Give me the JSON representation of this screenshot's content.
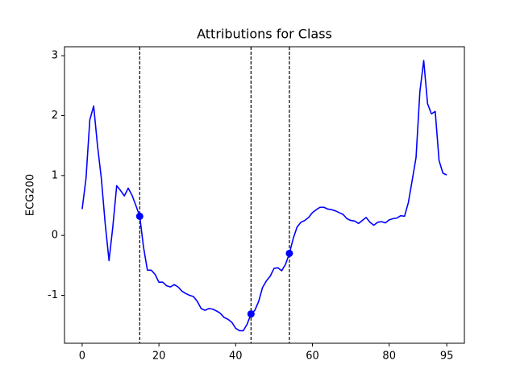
{
  "chart_data": {
    "type": "line",
    "title": "Attributions for Class",
    "y_label": "ECG200",
    "x": [
      0,
      1,
      2,
      3,
      4,
      5,
      6,
      7,
      8,
      9,
      10,
      11,
      12,
      13,
      14,
      15,
      16,
      17,
      18,
      19,
      20,
      21,
      22,
      23,
      24,
      25,
      26,
      27,
      28,
      29,
      30,
      31,
      32,
      33,
      34,
      35,
      36,
      37,
      38,
      39,
      40,
      41,
      42,
      43,
      44,
      45,
      46,
      47,
      48,
      49,
      50,
      51,
      52,
      53,
      54,
      55,
      56,
      57,
      58,
      59,
      60,
      61,
      62,
      63,
      64,
      65,
      66,
      67,
      68,
      69,
      70,
      71,
      72,
      73,
      74,
      75,
      76,
      77,
      78,
      79,
      80,
      81,
      82,
      83,
      84,
      85,
      86,
      87,
      88,
      89,
      90,
      91,
      92,
      93,
      94,
      95
    ],
    "series": [
      {
        "color": "#0000ff",
        "values": [
          0.44,
          0.95,
          1.93,
          2.16,
          1.5,
          0.95,
          0.2,
          -0.42,
          0.15,
          0.83,
          0.75,
          0.66,
          0.79,
          0.67,
          0.5,
          0.32,
          -0.2,
          -0.58,
          -0.58,
          -0.65,
          -0.78,
          -0.78,
          -0.84,
          -0.86,
          -0.82,
          -0.86,
          -0.93,
          -0.97,
          -1.0,
          -1.02,
          -1.1,
          -1.22,
          -1.25,
          -1.22,
          -1.23,
          -1.26,
          -1.3,
          -1.37,
          -1.4,
          -1.45,
          -1.55,
          -1.59,
          -1.59,
          -1.48,
          -1.31,
          -1.25,
          -1.1,
          -0.87,
          -0.76,
          -0.68,
          -0.55,
          -0.54,
          -0.59,
          -0.48,
          -0.3,
          -0.05,
          0.14,
          0.22,
          0.25,
          0.3,
          0.38,
          0.43,
          0.47,
          0.47,
          0.44,
          0.43,
          0.41,
          0.38,
          0.35,
          0.28,
          0.25,
          0.24,
          0.2,
          0.25,
          0.3,
          0.22,
          0.17,
          0.22,
          0.23,
          0.21,
          0.26,
          0.28,
          0.29,
          0.33,
          0.32,
          0.55,
          0.92,
          1.3,
          2.4,
          2.92,
          2.2,
          2.03,
          2.07,
          1.25,
          1.04,
          1.01
        ]
      }
    ],
    "markers": {
      "color": "#0000ff",
      "x": [
        15,
        44,
        54
      ],
      "values": [
        0.32,
        -1.31,
        -0.3
      ]
    },
    "vlines": [
      15,
      44,
      54
    ],
    "xlim": [
      -4.6,
      99.6
    ],
    "ylim": [
      -1.8,
      3.15
    ],
    "xticks": [
      0,
      20,
      40,
      60,
      80,
      95
    ],
    "yticks": [
      -1,
      0,
      1,
      2,
      3
    ],
    "grid": false
  }
}
